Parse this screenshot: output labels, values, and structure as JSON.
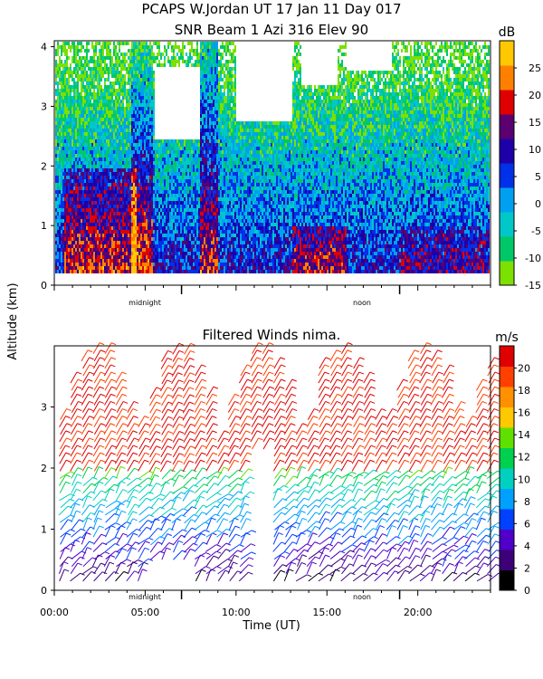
{
  "figure": {
    "title_line1": "PCAPS W.Jordan UT  17 Jan 11 Day 017",
    "title_line2": "SNR Beam 1 Azi 316 Elev 90",
    "y_label": "Altitude (km)",
    "x_label": "Time (UT)",
    "midnight_label": "midnight",
    "noon_label": "noon"
  },
  "chart_data": [
    {
      "type": "heatmap",
      "title": "SNR Beam 1 Azi 316 Elev 90",
      "ylabel": "Altitude (km)",
      "ylim": [
        0,
        4.1
      ],
      "xlim": [
        0,
        24
      ],
      "yticks": [
        "0",
        "1",
        "2",
        "3",
        "4"
      ],
      "x_markers": [
        {
          "label": "midnight",
          "x": 7
        },
        {
          "label": "noon",
          "x": 19
        }
      ],
      "colorbar": {
        "unit": "dB",
        "min": -15,
        "max": 30,
        "ticks": [
          "-15",
          "-10",
          "-5",
          "0",
          "5",
          "10",
          "15",
          "20",
          "25"
        ],
        "colors": [
          "#7ce000",
          "#00c868",
          "#00c8c8",
          "#00a0f0",
          "#0030e8",
          "#1e00a8",
          "#5a0070",
          "#e00000",
          "#ff8000",
          "#ffc800"
        ]
      },
      "grid": false
    },
    {
      "type": "scatter",
      "title": "Filtered Winds nima.",
      "xlabel": "Time (UT)",
      "ylabel": "Altitude (km)",
      "ylim": [
        0,
        4
      ],
      "xlim": [
        0,
        24
      ],
      "xticks": [
        "00:00",
        "05:00",
        "10:00",
        "15:00",
        "20:00"
      ],
      "yticks": [
        "0",
        "1",
        "2",
        "3"
      ],
      "x_markers": [
        {
          "label": "midnight",
          "x": 7
        },
        {
          "label": "noon",
          "x": 19
        }
      ],
      "colorbar": {
        "unit": "m/s",
        "min": 0,
        "max": 22,
        "ticks": [
          "0",
          "2",
          "4",
          "6",
          "8",
          "10",
          "12",
          "14",
          "16",
          "18",
          "20"
        ],
        "colors": [
          "#000000",
          "#3c0078",
          "#5000c8",
          "#0040ff",
          "#00a0ff",
          "#00d0c0",
          "#00d050",
          "#60e000",
          "#ffc800",
          "#ff9000",
          "#ff4000",
          "#e00000"
        ]
      },
      "grid": false
    }
  ]
}
